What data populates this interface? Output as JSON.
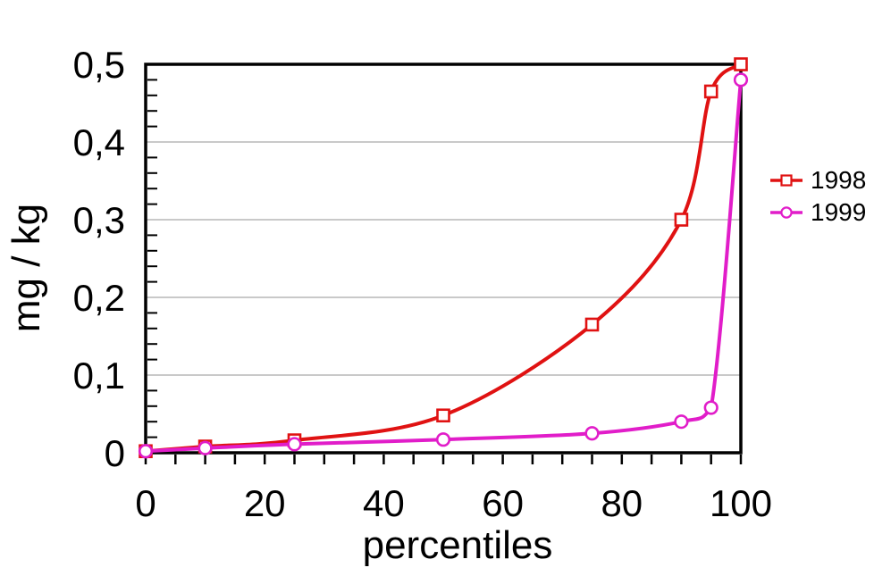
{
  "chart_data": {
    "type": "line",
    "title": "",
    "xlabel": "percentiles",
    "ylabel": "mg / kg",
    "x": [
      0,
      10,
      25,
      50,
      75,
      90,
      95,
      100
    ],
    "series": [
      {
        "name": "1998",
        "color": "#e01212",
        "marker": "square",
        "values": [
          0.002,
          0.008,
          0.016,
          0.048,
          0.165,
          0.3,
          0.465,
          0.5
        ]
      },
      {
        "name": "1999",
        "color": "#e11dc9",
        "marker": "circle",
        "values": [
          0.002,
          0.006,
          0.011,
          0.017,
          0.025,
          0.04,
          0.058,
          0.48
        ]
      }
    ],
    "xlim": [
      0,
      100
    ],
    "ylim": [
      0,
      0.5
    ],
    "x_ticks": {
      "labels": [
        "0",
        "20",
        "40",
        "60",
        "80",
        "100"
      ],
      "values": [
        0,
        20,
        40,
        60,
        80,
        100
      ],
      "minor_step": 5
    },
    "y_ticks": {
      "labels": [
        "0",
        "0,1",
        "0,2",
        "0,3",
        "0,4",
        "0,5"
      ],
      "values": [
        0,
        0.1,
        0.2,
        0.3,
        0.4,
        0.5
      ],
      "minor_step": 0.02
    },
    "grid": {
      "horizontal": true,
      "vertical": false,
      "color": "#a9a9a9"
    },
    "axis_color": "#000000",
    "text_color": "#000000",
    "background": "#ffffff",
    "legend": {
      "position": "right",
      "items": [
        "1998",
        "1999"
      ]
    }
  }
}
